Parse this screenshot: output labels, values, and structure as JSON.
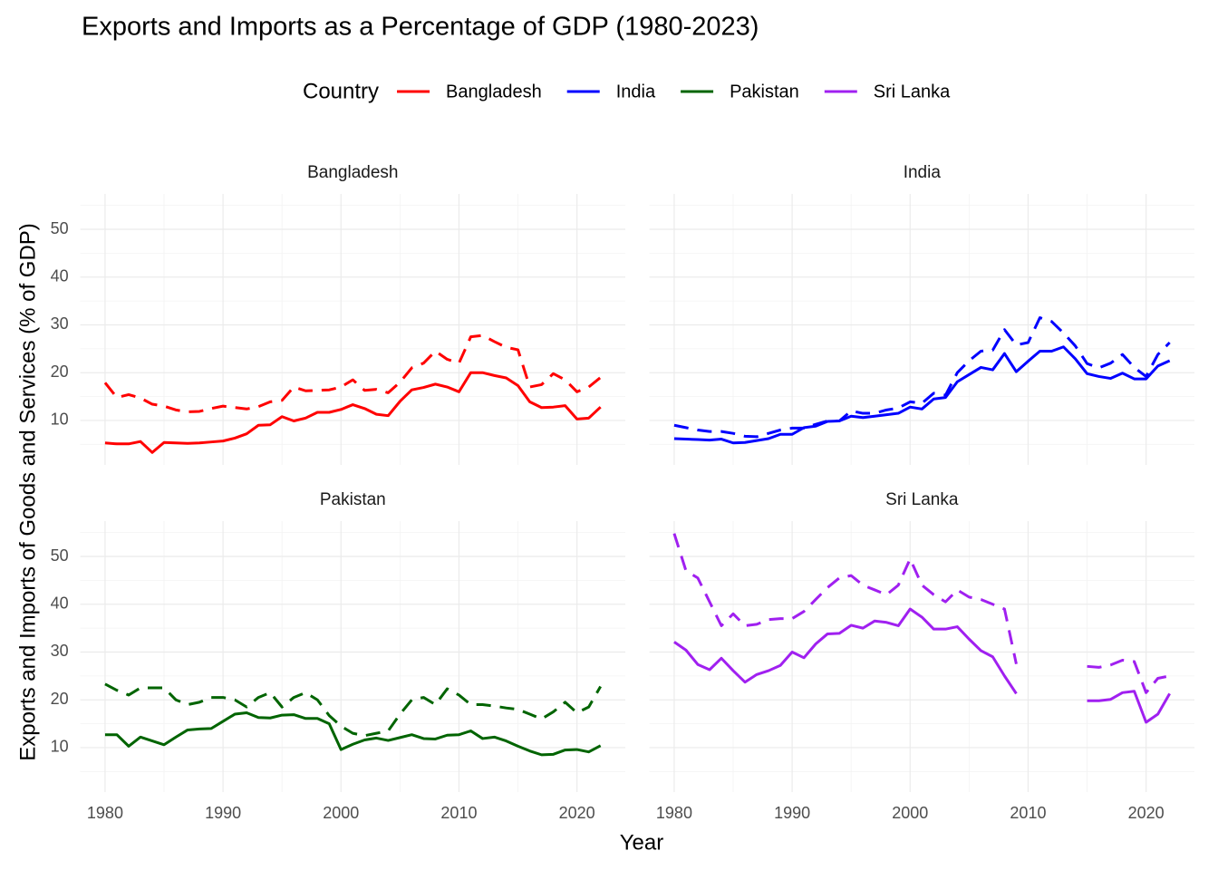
{
  "chart_data": {
    "type": "line",
    "title": "Exports and Imports as a Percentage of GDP (1980-2023)",
    "legend_title": "Country",
    "legend_position": "top",
    "x_label": "Year",
    "y_label": "Exports and Imports of Goods and Services (% of GDP)",
    "x": [
      1980,
      1981,
      1982,
      1983,
      1984,
      1985,
      1986,
      1987,
      1988,
      1989,
      1990,
      1991,
      1992,
      1993,
      1994,
      1995,
      1996,
      1997,
      1998,
      1999,
      2000,
      2001,
      2002,
      2003,
      2004,
      2005,
      2006,
      2007,
      2008,
      2009,
      2010,
      2011,
      2012,
      2013,
      2014,
      2015,
      2016,
      2017,
      2018,
      2019,
      2020,
      2021,
      2022
    ],
    "xlim": [
      1977.9,
      2024.1
    ],
    "xticks": [
      1980,
      1990,
      2000,
      2010,
      2020
    ],
    "minor_xticks": [
      1985,
      1995,
      2005,
      2015
    ],
    "ylim": [
      0.7,
      57.4
    ],
    "yticks": [
      10,
      20,
      30,
      40,
      50
    ],
    "minor_yticks": [
      5,
      15,
      25,
      35,
      45,
      55
    ],
    "grid": true,
    "series": [
      {
        "name": "Bangladesh",
        "color": "#ff0000",
        "lines": [
          {
            "linestyle": "solid",
            "values": [
              5.3,
              5.1,
              5.1,
              5.6,
              3.3,
              5.4,
              5.3,
              5.2,
              5.3,
              5.5,
              5.7,
              6.3,
              7.2,
              9.0,
              9.1,
              10.8,
              9.9,
              10.5,
              11.7,
              11.7,
              12.3,
              13.3,
              12.5,
              11.3,
              11.0,
              14.0,
              16.4,
              16.9,
              17.6,
              17.0,
              16.0,
              20.0,
              20.0,
              19.4,
              18.9,
              17.3,
              13.9,
              12.7,
              12.8,
              13.1,
              10.3,
              10.5,
              12.8
            ]
          },
          {
            "linestyle": "dashed",
            "values": [
              17.9,
              14.8,
              15.4,
              14.7,
              13.4,
              13.0,
              12.2,
              11.8,
              11.9,
              12.5,
              13.0,
              12.7,
              12.4,
              12.9,
              13.9,
              14.2,
              17.0,
              16.2,
              16.3,
              16.4,
              17.0,
              18.5,
              16.3,
              16.5,
              15.8,
              18.0,
              21.0,
              22.0,
              24.5,
              22.8,
              22.0,
              27.5,
              27.8,
              26.5,
              25.3,
              24.8,
              17.0,
              17.5,
              19.8,
              18.5,
              16.0,
              17.0,
              19.0
            ]
          }
        ]
      },
      {
        "name": "India",
        "color": "#0000ff",
        "lines": [
          {
            "linestyle": "solid",
            "values": [
              6.2,
              6.1,
              6.0,
              5.9,
              6.1,
              5.3,
              5.4,
              5.8,
              6.2,
              7.1,
              7.1,
              8.5,
              8.8,
              9.8,
              9.9,
              10.9,
              10.6,
              10.9,
              11.2,
              11.5,
              12.8,
              12.4,
              14.5,
              14.8,
              18.1,
              19.6,
              21.1,
              20.6,
              24.0,
              20.2,
              22.4,
              24.5,
              24.5,
              25.4,
              22.9,
              19.8,
              19.2,
              18.8,
              19.9,
              18.7,
              18.7,
              21.4,
              22.5
            ]
          },
          {
            "linestyle": "dashed",
            "values": [
              9.0,
              8.5,
              8.0,
              7.7,
              7.7,
              7.3,
              6.7,
              6.6,
              7.3,
              8.0,
              8.4,
              8.4,
              9.2,
              9.9,
              9.9,
              12.0,
              11.5,
              11.5,
              12.2,
              12.6,
              13.9,
              13.6,
              15.7,
              15.3,
              20.0,
              22.5,
              24.5,
              24.7,
              29.0,
              25.8,
              26.3,
              31.5,
              30.7,
              28.3,
              25.6,
              21.9,
              21.0,
              22.0,
              23.8,
              21.1,
              19.2,
              23.8,
              26.3
            ]
          }
        ]
      },
      {
        "name": "Pakistan",
        "color": "#006400",
        "lines": [
          {
            "linestyle": "solid",
            "values": [
              12.7,
              12.7,
              10.3,
              12.2,
              11.4,
              10.6,
              12.2,
              13.7,
              13.9,
              14.0,
              15.5,
              17.0,
              17.3,
              16.3,
              16.2,
              16.8,
              16.9,
              16.1,
              16.1,
              15.0,
              9.6,
              10.7,
              11.6,
              12.0,
              11.5,
              12.1,
              12.7,
              11.9,
              11.8,
              12.6,
              12.7,
              13.5,
              11.9,
              12.2,
              11.4,
              10.3,
              9.3,
              8.5,
              8.6,
              9.5,
              9.6,
              9.1,
              10.4
            ]
          },
          {
            "linestyle": "dashed",
            "values": [
              23.3,
              22.0,
              21.0,
              22.5,
              22.5,
              22.5,
              20.0,
              19.0,
              19.5,
              20.5,
              20.5,
              20.0,
              18.5,
              20.5,
              21.5,
              18.5,
              20.5,
              21.5,
              20.0,
              16.7,
              14.5,
              13.0,
              12.5,
              13.0,
              13.5,
              17.0,
              20.0,
              20.5,
              19.0,
              22.3,
              21.0,
              19.0,
              19.0,
              18.7,
              18.3,
              18.0,
              17.0,
              16.0,
              17.5,
              19.5,
              17.3,
              18.5,
              22.8
            ]
          }
        ]
      },
      {
        "name": "Sri Lanka",
        "color": "#a020f0",
        "lines": [
          {
            "linestyle": "solid",
            "values": [
              32.1,
              30.4,
              27.4,
              26.3,
              28.7,
              26.1,
              23.7,
              25.3,
              26.1,
              27.2,
              30.0,
              28.8,
              31.7,
              33.8,
              33.9,
              35.6,
              35.0,
              36.5,
              36.2,
              35.5,
              39.0,
              37.3,
              34.8,
              34.8,
              35.3,
              32.7,
              30.3,
              29.0,
              25.0,
              21.3,
              null,
              null,
              null,
              null,
              null,
              19.8,
              19.8,
              20.1,
              21.5,
              21.8,
              15.3,
              17.0,
              21.3
            ]
          },
          {
            "linestyle": "dashed",
            "values": [
              54.8,
              47.0,
              45.5,
              40.5,
              35.5,
              38.0,
              35.5,
              35.8,
              36.8,
              37.0,
              37.0,
              38.5,
              41.0,
              43.5,
              45.5,
              46.0,
              44.0,
              43.0,
              42.0,
              44.0,
              49.5,
              44.0,
              42.0,
              40.5,
              43.0,
              41.5,
              41.0,
              40.0,
              39.0,
              27.5,
              null,
              null,
              null,
              null,
              null,
              27.0,
              26.8,
              27.3,
              28.3,
              28.0,
              21.5,
              24.5,
              25.0
            ]
          }
        ]
      }
    ]
  }
}
